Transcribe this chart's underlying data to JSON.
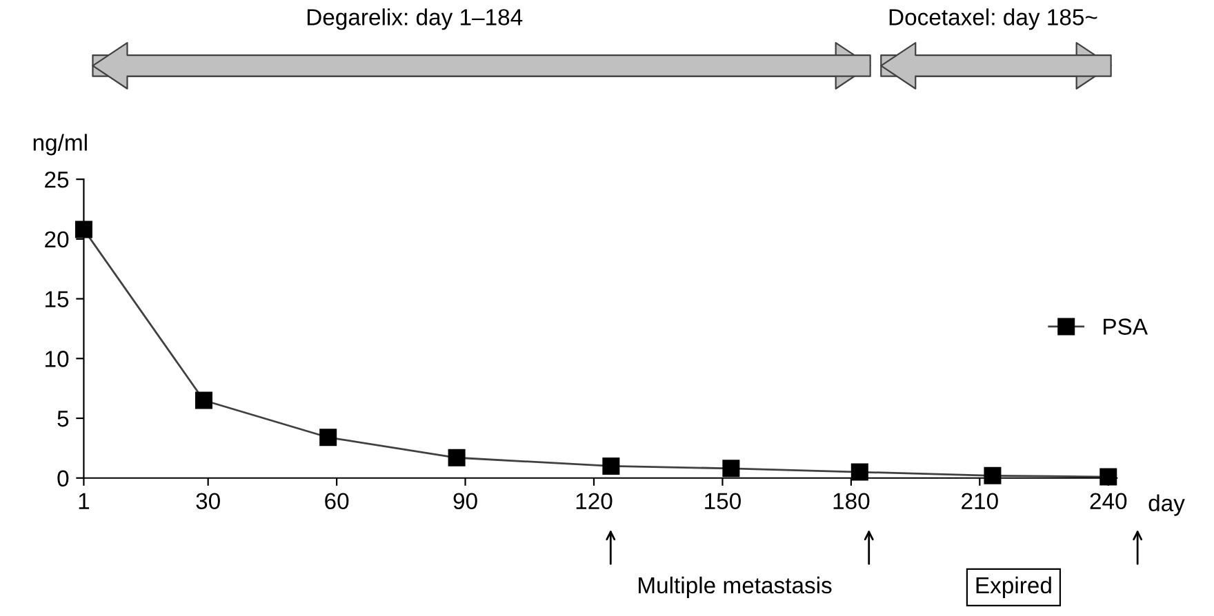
{
  "chart_data": {
    "type": "line",
    "ylabel": "ng/ml",
    "xlabel": "day",
    "x": [
      1,
      29,
      58,
      88,
      124,
      152,
      182,
      213,
      240
    ],
    "series": [
      {
        "name": "PSA",
        "color": "#000000",
        "values": [
          20.8,
          6.5,
          3.4,
          1.7,
          1.0,
          0.8,
          0.5,
          0.2,
          0.1
        ]
      }
    ],
    "xlim": [
      1,
      242
    ],
    "xticks": [
      1,
      30,
      60,
      90,
      120,
      150,
      180,
      210,
      240
    ],
    "ylim": [
      0,
      25
    ],
    "yticks": [
      0,
      5,
      10,
      15,
      20,
      25
    ],
    "annotations": [
      "Degarelix: day 1–184",
      "Docetaxel: day 185~",
      "Multiple metastasis",
      "Expired"
    ],
    "marker": "square",
    "line_style": "solid",
    "grid": false,
    "legend": "right"
  }
}
